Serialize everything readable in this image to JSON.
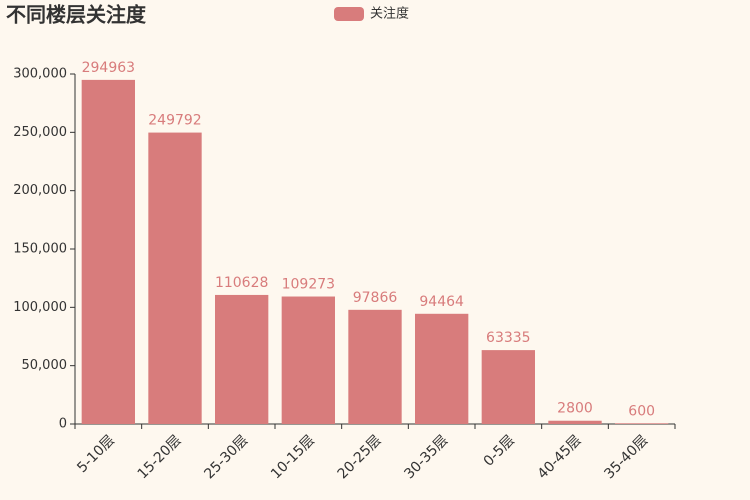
{
  "chart_data": {
    "type": "bar",
    "title": "不同楼层关注度",
    "legend": "关注度",
    "categories": [
      "5-10层",
      "15-20层",
      "25-30层",
      "10-15层",
      "20-25层",
      "30-35层",
      "0-5层",
      "40-45层",
      "35-40层"
    ],
    "series": [
      {
        "name": "关注度",
        "color": "#d87c7c",
        "values": [
          294963,
          249792,
          110628,
          109273,
          97866,
          94464,
          63335,
          2800,
          600
        ]
      }
    ],
    "ylim": [
      0,
      300000
    ],
    "yticks": [
      0,
      {
        "value": 50000,
        "label": "50,000"
      },
      {
        "value": 100000,
        "label": "100,000"
      },
      {
        "value": 150000,
        "label": "150,000"
      },
      {
        "value": 200000,
        "label": "200,000"
      },
      {
        "value": 250000,
        "label": "250,000"
      },
      {
        "value": 300000,
        "label": "300,000"
      }
    ],
    "grid": false
  }
}
